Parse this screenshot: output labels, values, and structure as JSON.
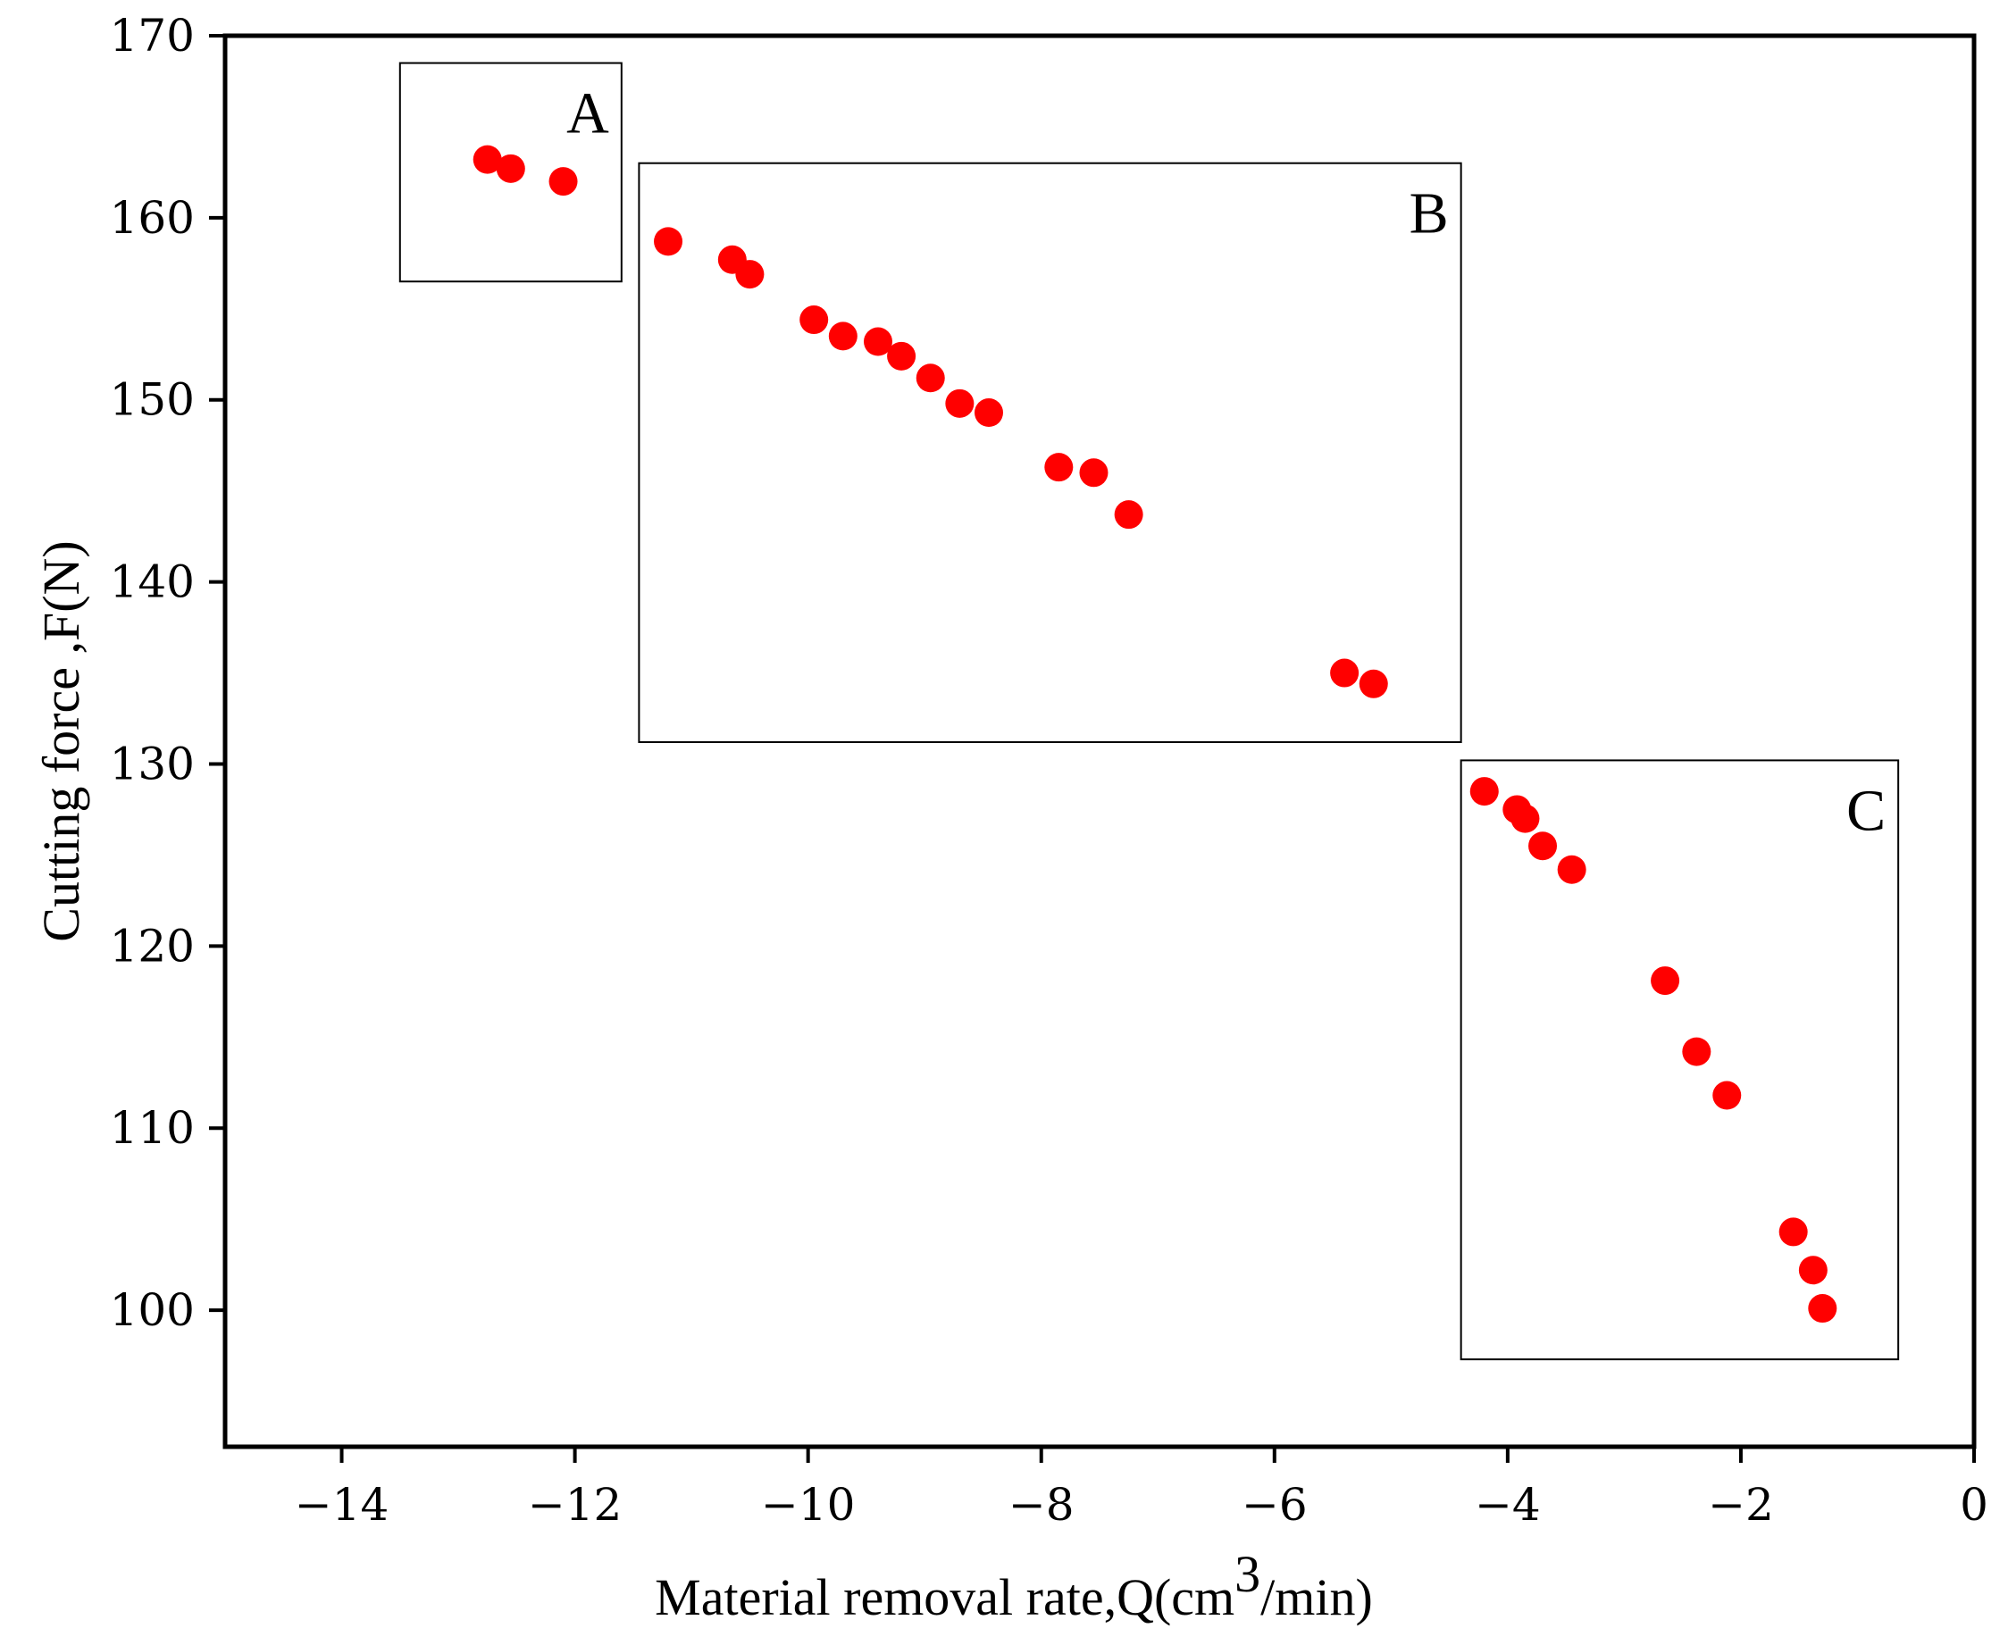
{
  "chart_data": {
    "type": "scatter",
    "title": "",
    "xlabel": "Material removal rate,Q(cm",
    "xlabel_superscript": "3",
    "xlabel_suffix": "/min)",
    "ylabel": "Cutting force ,F(N)",
    "xlim": [
      -15,
      0
    ],
    "ylim": [
      92.5,
      170
    ],
    "xticks": [
      -14,
      -12,
      -10,
      -8,
      -6,
      -4,
      -2,
      0
    ],
    "xtick_labels": [
      "−14",
      "−12",
      "−10",
      "−8",
      "−6",
      "−4",
      "−2",
      "0"
    ],
    "yticks": [
      100,
      110,
      120,
      130,
      140,
      150,
      160,
      170
    ],
    "ytick_labels": [
      "100",
      "110",
      "120",
      "130",
      "140",
      "150",
      "160",
      "170"
    ],
    "grid": false,
    "marker_color": "#ff0000",
    "series": [
      {
        "name": "points",
        "x": [
          -12.75,
          -12.55,
          -12.1,
          -11.2,
          -10.65,
          -10.5,
          -9.95,
          -9.7,
          -9.4,
          -9.2,
          -8.95,
          -8.7,
          -8.45,
          -7.85,
          -7.55,
          -7.25,
          -5.4,
          -5.15,
          -4.2,
          -3.92,
          -3.85,
          -3.7,
          -3.45,
          -2.65,
          -2.38,
          -2.12,
          -1.55,
          -1.38,
          -1.3
        ],
        "y": [
          163.2,
          162.7,
          162,
          158.7,
          157.7,
          156.9,
          154.4,
          153.5,
          153.2,
          152.4,
          151.2,
          149.8,
          149.3,
          146.3,
          146,
          143.7,
          135,
          134.4,
          128.5,
          127.5,
          127,
          125.5,
          124.2,
          118.1,
          114.2,
          111.8,
          104.3,
          102.2,
          100.1
        ]
      }
    ],
    "regions": [
      {
        "label": "A",
        "x_range": [
          -13.5,
          -11.6
        ],
        "y_range": [
          156.5,
          168.5
        ]
      },
      {
        "label": "B",
        "x_range": [
          -11.45,
          -4.4
        ],
        "y_range": [
          131.2,
          163
        ]
      },
      {
        "label": "C",
        "x_range": [
          -4.4,
          -0.65
        ],
        "y_range": [
          97.3,
          130.2
        ]
      }
    ]
  }
}
